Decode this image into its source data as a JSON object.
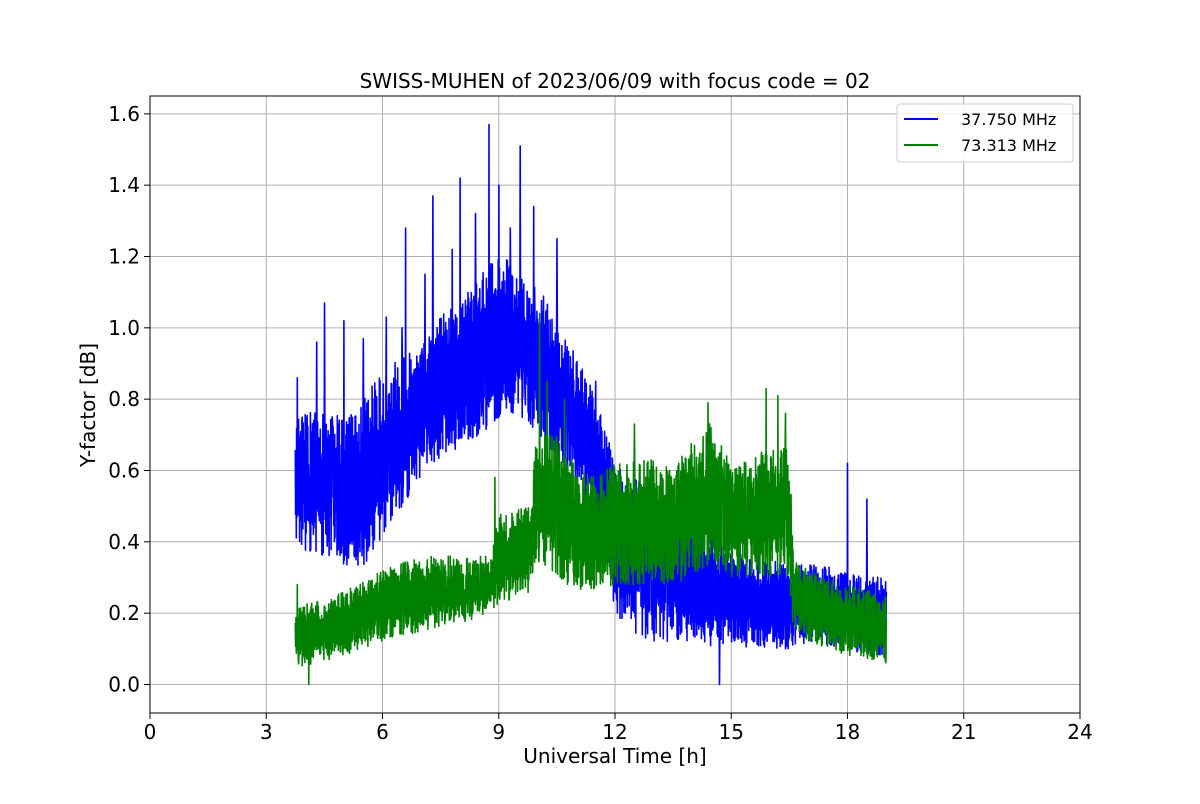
{
  "chart_data": {
    "type": "line",
    "title": "SWISS-MUHEN of 2023/06/09 with focus code = 02",
    "xlabel": "Universal Time [h]",
    "ylabel": "Y-factor [dB]",
    "xlim": [
      0,
      24
    ],
    "ylim": [
      -0.08,
      1.65
    ],
    "x_ticks": [
      0,
      3,
      6,
      9,
      12,
      15,
      18,
      21,
      24
    ],
    "x_tick_labels": [
      "0",
      "3",
      "6",
      "9",
      "12",
      "15",
      "18",
      "21",
      "24"
    ],
    "y_ticks": [
      0.0,
      0.2,
      0.4,
      0.6,
      0.8,
      1.0,
      1.2,
      1.4,
      1.6
    ],
    "y_tick_labels": [
      "0.0",
      "0.2",
      "0.4",
      "0.6",
      "0.8",
      "1.0",
      "1.2",
      "1.4",
      "1.6"
    ],
    "grid": true,
    "legend_position": "top-right",
    "series": [
      {
        "name": "37.750 MHz",
        "color": "#0000ff",
        "x_range": [
          3.75,
          19.0
        ],
        "envelope": {
          "x": [
            3.75,
            4.5,
            5.0,
            5.5,
            6.0,
            7.0,
            7.5,
            8.0,
            8.5,
            9.0,
            9.5,
            10.0,
            10.5,
            11.0,
            11.5,
            11.8,
            12.0,
            12.5,
            13.0,
            14.0,
            14.5,
            15.0,
            15.5,
            16.0,
            16.5,
            17.0,
            18.0,
            19.0
          ],
          "low": [
            0.38,
            0.36,
            0.33,
            0.32,
            0.4,
            0.58,
            0.63,
            0.66,
            0.7,
            0.74,
            0.76,
            0.7,
            0.62,
            0.56,
            0.46,
            0.35,
            0.2,
            0.14,
            0.12,
            0.12,
            0.1,
            0.12,
            0.1,
            0.1,
            0.1,
            0.12,
            0.1,
            0.06
          ],
          "high": [
            0.75,
            0.78,
            0.75,
            0.8,
            0.88,
            0.95,
            1.03,
            1.1,
            1.15,
            1.2,
            1.18,
            1.12,
            1.02,
            0.92,
            0.82,
            0.7,
            0.62,
            0.58,
            0.54,
            0.48,
            0.42,
            0.38,
            0.36,
            0.35,
            0.34,
            0.34,
            0.32,
            0.3
          ]
        },
        "spikes": [
          {
            "x": 3.8,
            "y": 0.86
          },
          {
            "x": 4.3,
            "y": 0.96
          },
          {
            "x": 4.5,
            "y": 1.07
          },
          {
            "x": 5.0,
            "y": 1.02
          },
          {
            "x": 5.5,
            "y": 0.97
          },
          {
            "x": 6.1,
            "y": 1.03
          },
          {
            "x": 6.5,
            "y": 1.0
          },
          {
            "x": 6.6,
            "y": 1.28
          },
          {
            "x": 7.1,
            "y": 1.15
          },
          {
            "x": 7.3,
            "y": 1.37
          },
          {
            "x": 7.8,
            "y": 1.22
          },
          {
            "x": 8.0,
            "y": 1.42
          },
          {
            "x": 8.4,
            "y": 1.32
          },
          {
            "x": 8.75,
            "y": 1.57
          },
          {
            "x": 9.0,
            "y": 1.4
          },
          {
            "x": 9.3,
            "y": 1.28
          },
          {
            "x": 9.55,
            "y": 1.51
          },
          {
            "x": 9.9,
            "y": 1.34
          },
          {
            "x": 10.5,
            "y": 1.25
          },
          {
            "x": 11.5,
            "y": 0.85
          },
          {
            "x": 14.5,
            "y": 0.6
          },
          {
            "x": 15.7,
            "y": 0.61
          },
          {
            "x": 18.0,
            "y": 0.62
          },
          {
            "x": 18.5,
            "y": 0.52
          },
          {
            "x": 14.7,
            "y": 0.0
          }
        ]
      },
      {
        "name": "73.313 MHz",
        "color": "#008000",
        "x_range": [
          3.75,
          19.0
        ],
        "envelope": {
          "x": [
            3.75,
            4.5,
            5.0,
            6.0,
            7.0,
            8.0,
            8.8,
            9.0,
            9.8,
            10.0,
            10.5,
            11.0,
            11.5,
            12.0,
            13.0,
            13.5,
            14.0,
            14.5,
            15.0,
            15.5,
            16.0,
            16.5,
            16.6,
            17.0,
            18.0,
            19.0
          ],
          "low": [
            0.05,
            0.06,
            0.08,
            0.12,
            0.15,
            0.17,
            0.2,
            0.22,
            0.26,
            0.34,
            0.3,
            0.26,
            0.26,
            0.28,
            0.28,
            0.28,
            0.3,
            0.32,
            0.3,
            0.3,
            0.3,
            0.3,
            0.15,
            0.12,
            0.08,
            0.06
          ],
          "high": [
            0.22,
            0.24,
            0.26,
            0.32,
            0.36,
            0.36,
            0.36,
            0.48,
            0.5,
            0.72,
            0.7,
            0.62,
            0.58,
            0.62,
            0.64,
            0.62,
            0.68,
            0.74,
            0.62,
            0.64,
            0.66,
            0.68,
            0.36,
            0.32,
            0.28,
            0.25
          ]
        },
        "spikes": [
          {
            "x": 3.8,
            "y": 0.28
          },
          {
            "x": 8.9,
            "y": 0.58
          },
          {
            "x": 10.05,
            "y": 1.04
          },
          {
            "x": 10.25,
            "y": 0.85
          },
          {
            "x": 10.7,
            "y": 0.8
          },
          {
            "x": 12.5,
            "y": 0.73
          },
          {
            "x": 14.4,
            "y": 0.79
          },
          {
            "x": 15.9,
            "y": 0.83
          },
          {
            "x": 16.2,
            "y": 0.81
          },
          {
            "x": 16.4,
            "y": 0.76
          },
          {
            "x": 4.1,
            "y": 0.0
          }
        ]
      }
    ]
  }
}
